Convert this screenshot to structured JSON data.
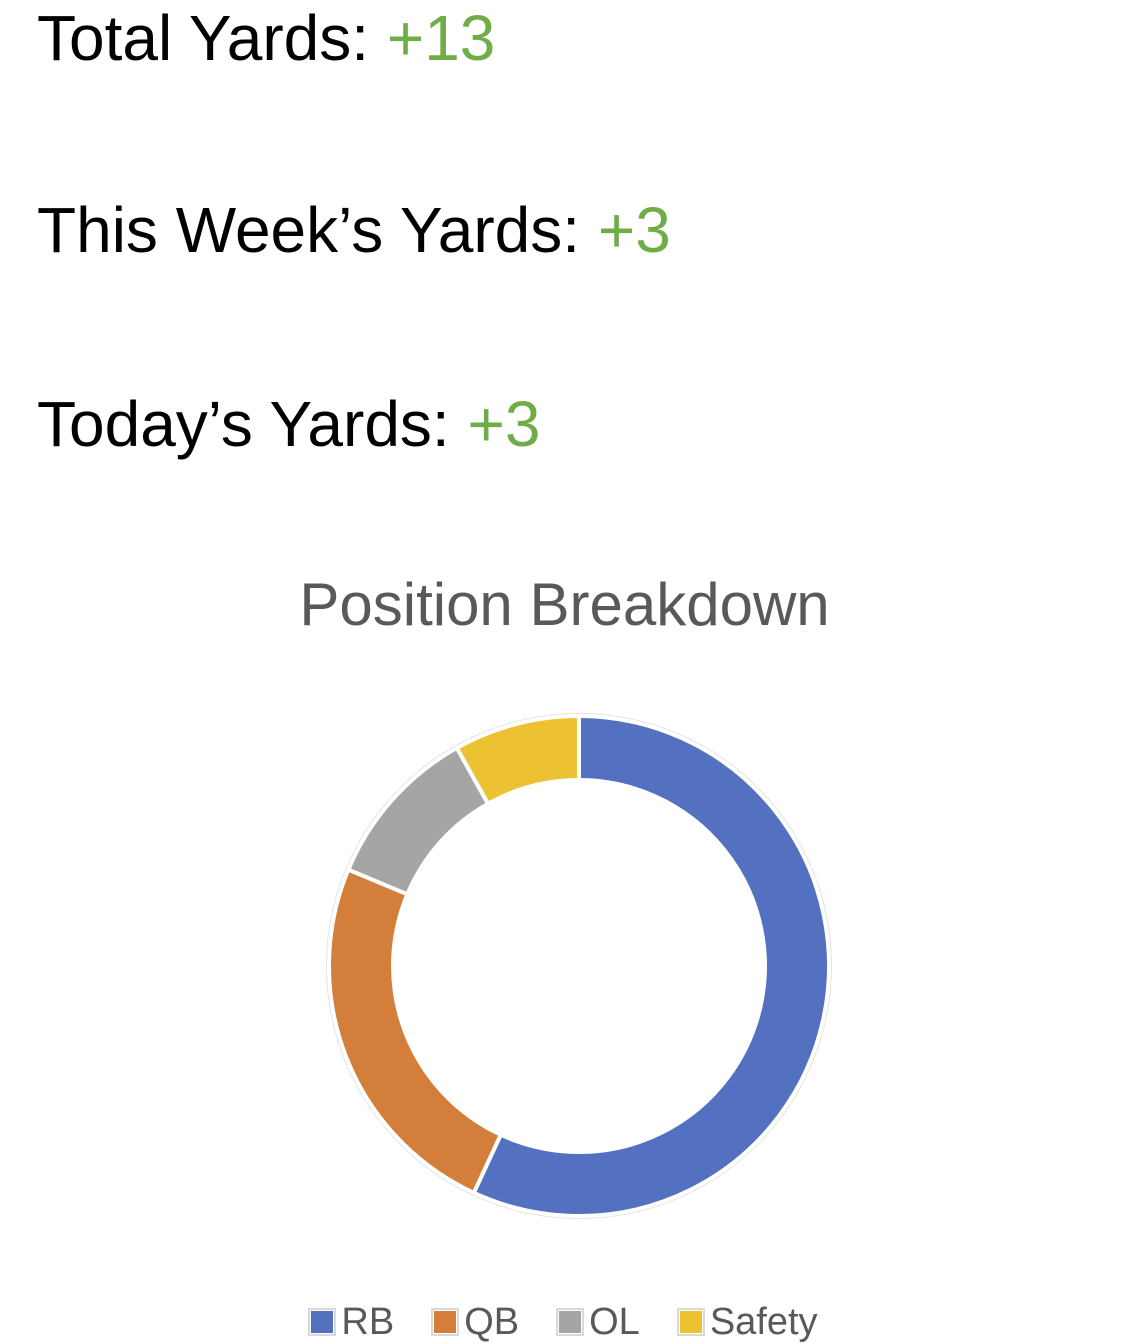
{
  "stats": [
    {
      "label": "Total Yards: ",
      "value": "+13"
    },
    {
      "label": "This Week’s Yards: ",
      "value": "+3"
    },
    {
      "label": "Today’s Yards: ",
      "value": "+3"
    }
  ],
  "colors": {
    "value_positive": "#70ad47",
    "title": "#595959"
  },
  "chart_data": {
    "type": "pie",
    "subtype": "donut",
    "title": "Position Breakdown",
    "categories": [
      "RB",
      "QB",
      "OL",
      "Safety"
    ],
    "values": [
      7,
      3,
      1.3,
      1
    ],
    "colors": [
      "#5470c0",
      "#d47e3c",
      "#a5a5a5",
      "#ecc232"
    ],
    "legend_position": "bottom"
  }
}
